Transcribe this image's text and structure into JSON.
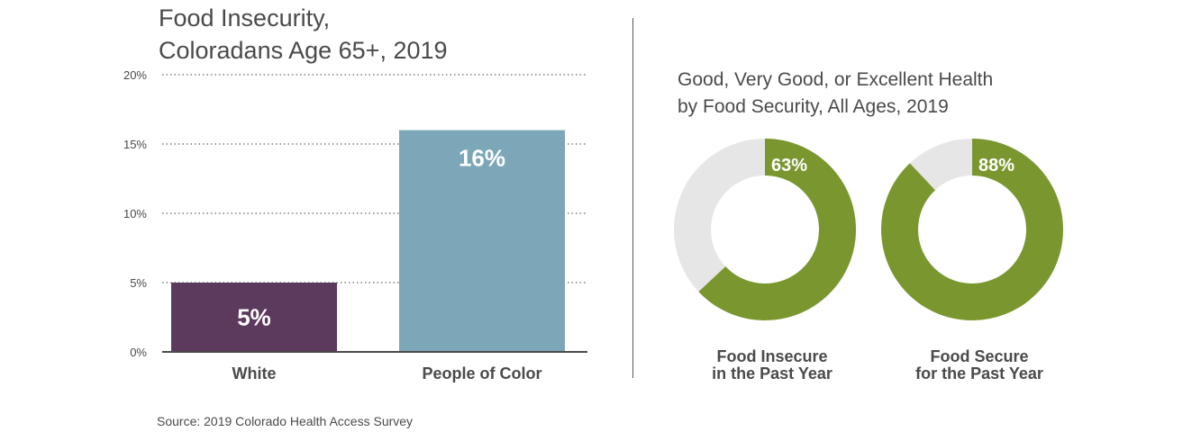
{
  "chart_data": [
    {
      "type": "bar",
      "title": [
        "Food Insecurity,",
        "Coloradans Age 65+, 2019"
      ],
      "categories": [
        "White",
        "People of Color"
      ],
      "values": [
        5,
        16
      ],
      "value_labels": [
        "5%",
        "16%"
      ],
      "colors": [
        "#5c3a5e",
        "#7ba7b8"
      ],
      "yticks": [
        "0%",
        "5%",
        "10%",
        "15%",
        "20%"
      ],
      "ylim": [
        0,
        20
      ],
      "grid": true
    },
    {
      "type": "pie",
      "title": [
        "Good, Very Good, or Excellent Health",
        "by Food Security, All Ages, 2019"
      ],
      "donuts": [
        {
          "value": 63,
          "label": "63%",
          "caption": [
            "Food Insecure",
            "in the Past Year"
          ]
        },
        {
          "value": 88,
          "label": "88%",
          "caption": [
            "Food Secure",
            "for the Past Year"
          ]
        }
      ],
      "colors": {
        "value": "#7a972f",
        "remainder": "#e6e6e6"
      }
    }
  ],
  "source": "Source: 2019 Colorado Health Access Survey"
}
